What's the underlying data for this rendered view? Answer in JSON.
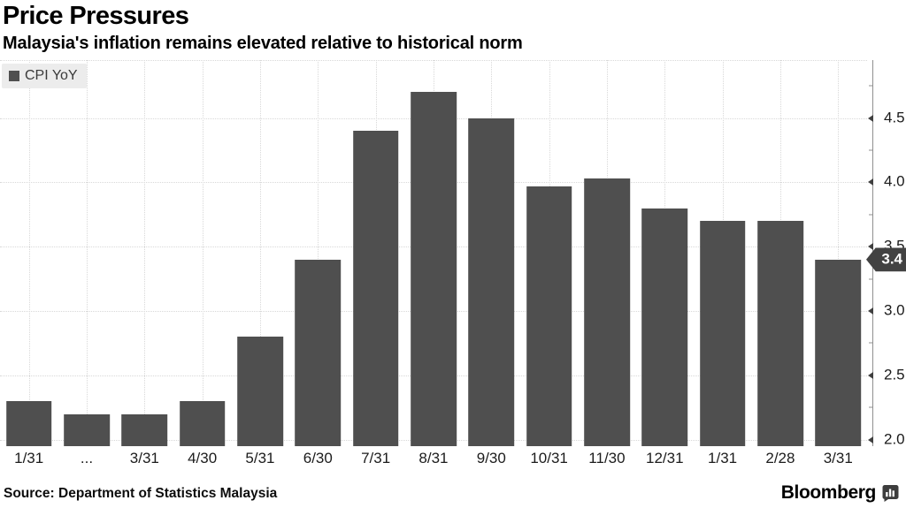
{
  "title": "Price Pressures",
  "subtitle": "Malaysia's inflation remains elevated relative to historical norm",
  "legend": {
    "series_label": "CPI YoY"
  },
  "callout": {
    "value_label": "3.4"
  },
  "footer": {
    "source_label": "Source:",
    "source_text": "Department of Statistics Malaysia",
    "brand": "Bloomberg"
  },
  "colors": {
    "bar": "#4f4f4f",
    "callout_bg": "#424242",
    "legend_bg": "#ececec",
    "grid": "#d8d8d8",
    "axis": "#8f8f8f"
  },
  "chart_data": {
    "type": "bar",
    "title": "Price Pressures",
    "subtitle": "Malaysia's inflation remains elevated relative to historical norm",
    "categories": [
      "1/31",
      "...",
      "3/31",
      "4/30",
      "5/31",
      "6/30",
      "7/31",
      "8/31",
      "9/30",
      "10/31",
      "11/30",
      "12/31",
      "1/31",
      "2/28",
      "3/31"
    ],
    "series": [
      {
        "name": "CPI YoY",
        "values": [
          2.3,
          2.2,
          2.2,
          2.3,
          2.8,
          3.4,
          4.4,
          4.7,
          4.5,
          3.97,
          4.03,
          3.8,
          3.7,
          3.7,
          3.4
        ]
      }
    ],
    "xlabel": "",
    "ylabel": "",
    "ylim": [
      1.95,
      4.95
    ],
    "yticks": [
      2.0,
      2.5,
      3.0,
      3.5,
      4.0,
      4.5
    ],
    "ytick_minor_step": 0.25,
    "ytick_format_decimals": 1,
    "grid": true,
    "axis_side": "right",
    "legend_position": "top-left",
    "last_value_label": "3.4",
    "last_value": 3.4
  }
}
